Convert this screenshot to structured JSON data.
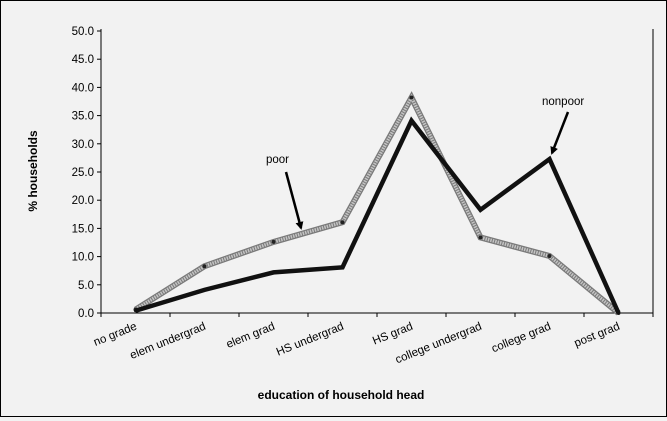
{
  "chart_data": {
    "type": "line",
    "title": "",
    "xlabel": "education of household head",
    "ylabel": "% households",
    "ylim": [
      0,
      50
    ],
    "y_ticks": [
      "0.0",
      "5.0",
      "10.0",
      "15.0",
      "20.0",
      "25.0",
      "30.0",
      "35.0",
      "40.0",
      "45.0",
      "50.0"
    ],
    "grid": false,
    "legend": "none",
    "categories": [
      "no grade",
      "elem undergrad",
      "elem grad",
      "HS undergrad",
      "HS grad",
      "college undergrad",
      "college grad",
      "post grad"
    ],
    "series": [
      {
        "name": "poor",
        "color": "#b3b3b3",
        "values": [
          0.6,
          8.3,
          12.6,
          16.1,
          38.2,
          13.4,
          10.1,
          0.0
        ]
      },
      {
        "name": "nonpoor",
        "color": "#111111",
        "values": [
          0.4,
          4.1,
          7.2,
          8.1,
          34.1,
          18.3,
          27.3,
          0.0
        ]
      }
    ],
    "annotations": [
      {
        "text": "poor",
        "points_to": "poor"
      },
      {
        "text": "nonpoor",
        "points_to": "nonpoor"
      }
    ]
  }
}
